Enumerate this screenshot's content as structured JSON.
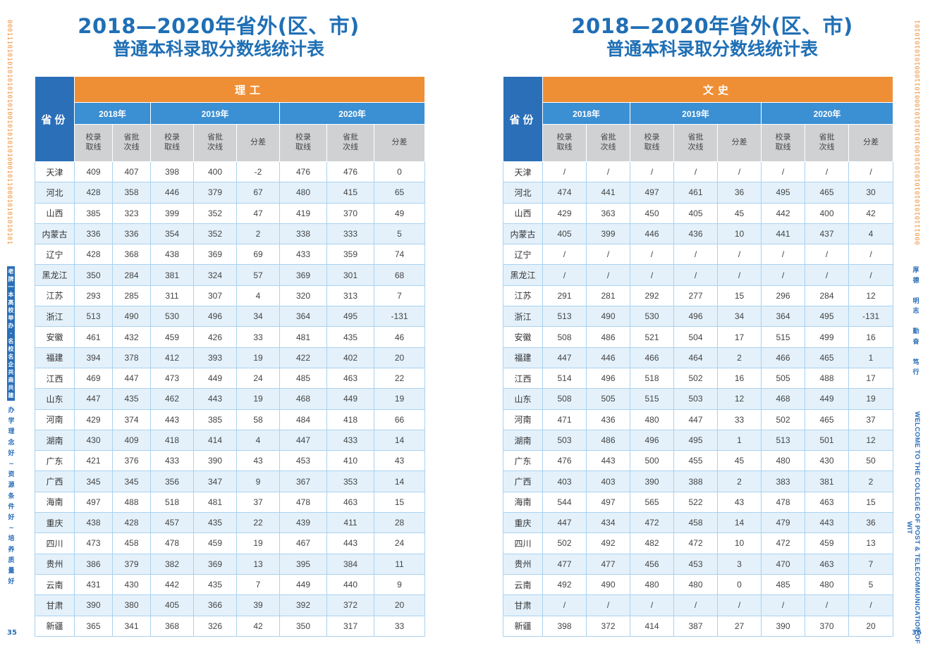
{
  "left_page": {
    "title_line1": "2018—2020年省外(区、市)",
    "title_line2": "普通本科录取分数线统计表",
    "province_header": "省份",
    "category": "理工",
    "years": [
      "2018年",
      "2019年",
      "2020年"
    ],
    "sub_headers": [
      "校录取线",
      "省批次线",
      "校录取线",
      "省批次线",
      "分差",
      "校录取线",
      "省批次线",
      "分差"
    ],
    "rows": [
      [
        "天津",
        "409",
        "407",
        "398",
        "400",
        "-2",
        "476",
        "476",
        "0"
      ],
      [
        "河北",
        "428",
        "358",
        "446",
        "379",
        "67",
        "480",
        "415",
        "65"
      ],
      [
        "山西",
        "385",
        "323",
        "399",
        "352",
        "47",
        "419",
        "370",
        "49"
      ],
      [
        "内蒙古",
        "336",
        "336",
        "354",
        "352",
        "2",
        "338",
        "333",
        "5"
      ],
      [
        "辽宁",
        "428",
        "368",
        "438",
        "369",
        "69",
        "433",
        "359",
        "74"
      ],
      [
        "黑龙江",
        "350",
        "284",
        "381",
        "324",
        "57",
        "369",
        "301",
        "68"
      ],
      [
        "江苏",
        "293",
        "285",
        "311",
        "307",
        "4",
        "320",
        "313",
        "7"
      ],
      [
        "浙江",
        "513",
        "490",
        "530",
        "496",
        "34",
        "364",
        "495",
        "-131"
      ],
      [
        "安徽",
        "461",
        "432",
        "459",
        "426",
        "33",
        "481",
        "435",
        "46"
      ],
      [
        "福建",
        "394",
        "378",
        "412",
        "393",
        "19",
        "422",
        "402",
        "20"
      ],
      [
        "江西",
        "469",
        "447",
        "473",
        "449",
        "24",
        "485",
        "463",
        "22"
      ],
      [
        "山东",
        "447",
        "435",
        "462",
        "443",
        "19",
        "468",
        "449",
        "19"
      ],
      [
        "河南",
        "429",
        "374",
        "443",
        "385",
        "58",
        "484",
        "418",
        "66"
      ],
      [
        "湖南",
        "430",
        "409",
        "418",
        "414",
        "4",
        "447",
        "433",
        "14"
      ],
      [
        "广东",
        "421",
        "376",
        "433",
        "390",
        "43",
        "453",
        "410",
        "43"
      ],
      [
        "广西",
        "345",
        "345",
        "356",
        "347",
        "9",
        "367",
        "353",
        "14"
      ],
      [
        "海南",
        "497",
        "488",
        "518",
        "481",
        "37",
        "478",
        "463",
        "15"
      ],
      [
        "重庆",
        "438",
        "428",
        "457",
        "435",
        "22",
        "439",
        "411",
        "28"
      ],
      [
        "四川",
        "473",
        "458",
        "478",
        "459",
        "19",
        "467",
        "443",
        "24"
      ],
      [
        "贵州",
        "386",
        "379",
        "382",
        "369",
        "13",
        "395",
        "384",
        "11"
      ],
      [
        "云南",
        "431",
        "430",
        "442",
        "435",
        "7",
        "449",
        "440",
        "9"
      ],
      [
        "甘肃",
        "390",
        "380",
        "405",
        "366",
        "39",
        "392",
        "372",
        "20"
      ],
      [
        "新疆",
        "365",
        "341",
        "368",
        "326",
        "42",
        "350",
        "317",
        "33"
      ]
    ],
    "binary_strip": "000111010101010101010100101010101000101100010101010101",
    "motto_small": "老牌一本高校举办·名校名企共商共建",
    "motto_big": [
      "办",
      "学",
      "理",
      "念",
      "好",
      "~",
      "资",
      "源",
      "条",
      "件",
      "好",
      "~",
      "培",
      "养",
      "质",
      "量",
      "好"
    ],
    "page_number": "35"
  },
  "right_page": {
    "title_line1": "2018—2020年省外(区、市)",
    "title_line2": "普通本科录取分数线统计表",
    "province_header": "省份",
    "category": "文史",
    "years": [
      "2018年",
      "2019年",
      "2020年"
    ],
    "sub_headers": [
      "校录取线",
      "省批次线",
      "校录取线",
      "省批次线",
      "分差",
      "校录取线",
      "省批次线",
      "分差"
    ],
    "rows": [
      [
        "天津",
        "/",
        "/",
        "/",
        "/",
        "/",
        "/",
        "/",
        "/"
      ],
      [
        "河北",
        "474",
        "441",
        "497",
        "461",
        "36",
        "495",
        "465",
        "30"
      ],
      [
        "山西",
        "429",
        "363",
        "450",
        "405",
        "45",
        "442",
        "400",
        "42"
      ],
      [
        "内蒙古",
        "405",
        "399",
        "446",
        "436",
        "10",
        "441",
        "437",
        "4"
      ],
      [
        "辽宁",
        "/",
        "/",
        "/",
        "/",
        "/",
        "/",
        "/",
        "/"
      ],
      [
        "黑龙江",
        "/",
        "/",
        "/",
        "/",
        "/",
        "/",
        "/",
        "/"
      ],
      [
        "江苏",
        "291",
        "281",
        "292",
        "277",
        "15",
        "296",
        "284",
        "12"
      ],
      [
        "浙江",
        "513",
        "490",
        "530",
        "496",
        "34",
        "364",
        "495",
        "-131"
      ],
      [
        "安徽",
        "508",
        "486",
        "521",
        "504",
        "17",
        "515",
        "499",
        "16"
      ],
      [
        "福建",
        "447",
        "446",
        "466",
        "464",
        "2",
        "466",
        "465",
        "1"
      ],
      [
        "江西",
        "514",
        "496",
        "518",
        "502",
        "16",
        "505",
        "488",
        "17"
      ],
      [
        "山东",
        "508",
        "505",
        "515",
        "503",
        "12",
        "468",
        "449",
        "19"
      ],
      [
        "河南",
        "471",
        "436",
        "480",
        "447",
        "33",
        "502",
        "465",
        "37"
      ],
      [
        "湖南",
        "503",
        "486",
        "496",
        "495",
        "1",
        "513",
        "501",
        "12"
      ],
      [
        "广东",
        "476",
        "443",
        "500",
        "455",
        "45",
        "480",
        "430",
        "50"
      ],
      [
        "广西",
        "403",
        "403",
        "390",
        "388",
        "2",
        "383",
        "381",
        "2"
      ],
      [
        "海南",
        "544",
        "497",
        "565",
        "522",
        "43",
        "478",
        "463",
        "15"
      ],
      [
        "重庆",
        "447",
        "434",
        "472",
        "458",
        "14",
        "479",
        "443",
        "36"
      ],
      [
        "四川",
        "502",
        "492",
        "482",
        "472",
        "10",
        "472",
        "459",
        "13"
      ],
      [
        "贵州",
        "477",
        "477",
        "456",
        "453",
        "3",
        "470",
        "463",
        "7"
      ],
      [
        "云南",
        "492",
        "490",
        "480",
        "480",
        "0",
        "485",
        "480",
        "5"
      ],
      [
        "甘肃",
        "/",
        "/",
        "/",
        "/",
        "/",
        "/",
        "/",
        "/"
      ],
      [
        "新疆",
        "398",
        "372",
        "414",
        "387",
        "27",
        "390",
        "370",
        "20"
      ]
    ],
    "binary_strip": "000111010101010101010100101010101000101100010101010101",
    "motto": [
      "厚",
      "德",
      "",
      "明",
      "志",
      "",
      "勤",
      "奋",
      "",
      "笃",
      "行"
    ],
    "welcome": "WELCOME TO THE COLLEGE OF POST & TELECOMMUNICATION OF WIT",
    "page_number": "36"
  },
  "colors": {
    "title_blue": "#1f6fb5",
    "category_orange": "#ef8f35",
    "year_blue": "#3b8fd3",
    "province_blue": "#2a6fb8",
    "subheader_gray": "#cfd1d3",
    "alt_row": "#e4f1fb"
  }
}
